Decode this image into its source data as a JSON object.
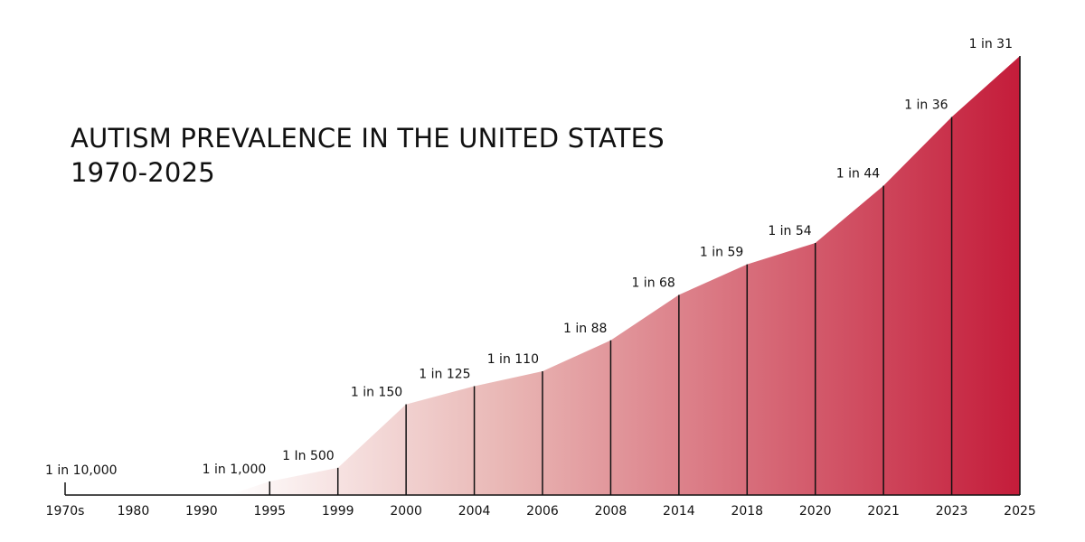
{
  "chart_data": {
    "type": "area",
    "title": "AUTISM PREVALENCE IN THE UNITED STATES",
    "subtitle": "1970-2025",
    "xlabel": "",
    "ylabel": "",
    "grid": false,
    "legend": "none",
    "colors": {
      "gradient_start": "#ffffff",
      "gradient_end": "#c41c3a",
      "axis": "#111111",
      "text": "#111111"
    },
    "categories": [
      "1970s",
      "1980",
      "1990",
      "1995",
      "1999",
      "2000",
      "2004",
      "2006",
      "2008",
      "2014",
      "2018",
      "2020",
      "2021",
      "2023",
      "2025"
    ],
    "points": [
      {
        "x": "1970s",
        "label": "1 in 10,000",
        "denominator": 10000
      },
      {
        "x": "1995",
        "label": "1 in 1,000",
        "denominator": 1000
      },
      {
        "x": "1999",
        "label": "1 In 500",
        "denominator": 500
      },
      {
        "x": "2000",
        "label": "1 in 150",
        "denominator": 150
      },
      {
        "x": "2004",
        "label": "1 in 125",
        "denominator": 125
      },
      {
        "x": "2006",
        "label": "1 in 110",
        "denominator": 110
      },
      {
        "x": "2008",
        "label": "1 in 88",
        "denominator": 88
      },
      {
        "x": "2014",
        "label": "1 in 68",
        "denominator": 68
      },
      {
        "x": "2018",
        "label": "1 in 59",
        "denominator": 59
      },
      {
        "x": "2020",
        "label": "1 in 54",
        "denominator": 54
      },
      {
        "x": "2021",
        "label": "1 in 44",
        "denominator": 44
      },
      {
        "x": "2023",
        "label": "1 in 36",
        "denominator": 36
      },
      {
        "x": "2025",
        "label": "1 in 31",
        "denominator": 31
      }
    ]
  }
}
